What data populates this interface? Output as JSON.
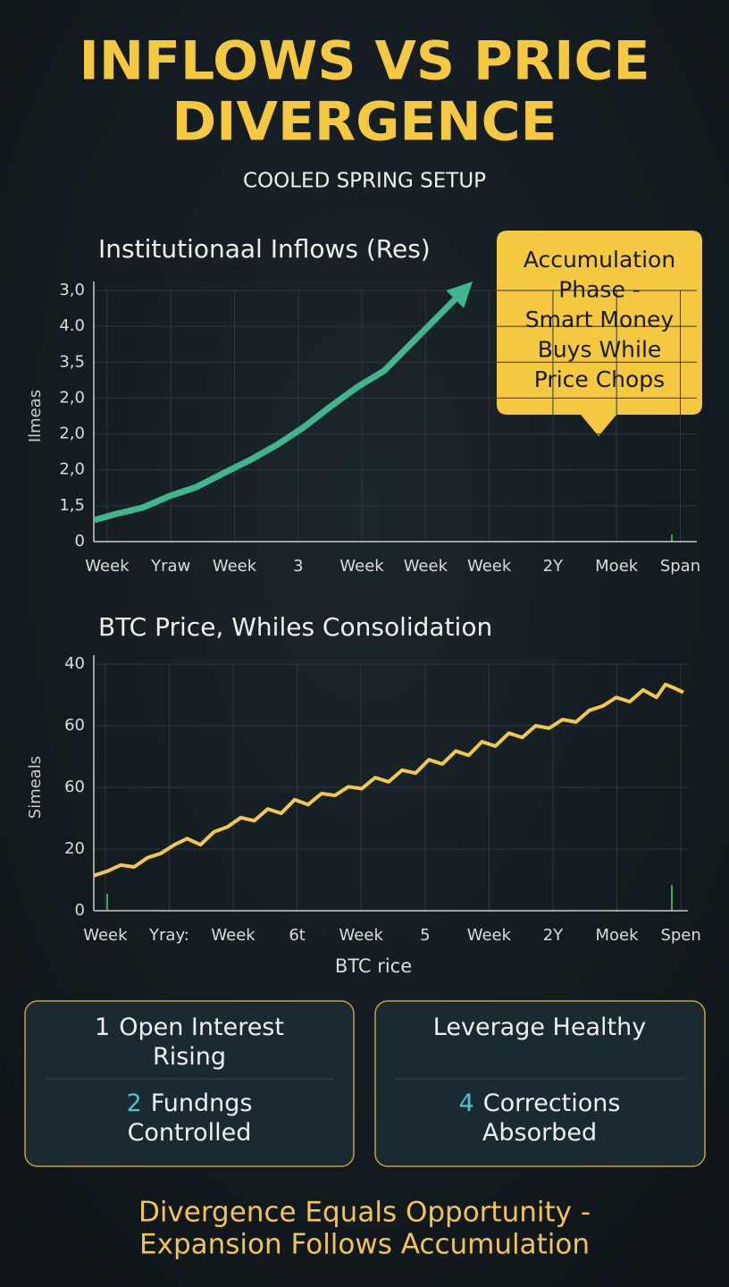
{
  "header": {
    "title_lines": [
      "INFLOWS VS PRICE",
      "DIVERGENCE"
    ],
    "subtitle": "COOLED SPRING SETUP"
  },
  "chart_data": [
    {
      "type": "line",
      "title": "Institutionaal Inflows (Res)",
      "y_label": "Ilmeas",
      "color": "#3fb68e",
      "arrow": true,
      "grid": true,
      "xlim": [
        -0.21,
        9.26
      ],
      "ylim": [
        0,
        7
      ],
      "xticks": [
        {
          "value": 0,
          "label": "Week"
        },
        {
          "value": 1,
          "label": "Yraw"
        },
        {
          "value": 2,
          "label": "Week"
        },
        3,
        {
          "value": 4,
          "label": "Week"
        },
        {
          "value": 5,
          "label": "Week"
        },
        {
          "value": 6,
          "label": "Week"
        },
        {
          "value": 7,
          "label": "2Y"
        },
        {
          "value": 8,
          "label": "Moek"
        },
        {
          "value": 9,
          "label": "Span"
        }
      ],
      "yticks": [
        0,
        {
          "value": 1,
          "label": "1,5"
        },
        {
          "value": 2,
          "label": "2,0"
        },
        {
          "value": 3,
          "label": "2,0"
        },
        {
          "value": 4,
          "label": "2,0"
        },
        {
          "value": 5,
          "label": "3,5"
        },
        {
          "value": 6,
          "label": "4.0"
        },
        {
          "value": 7,
          "label": "3,0"
        }
      ],
      "x": [
        -0.2,
        0.14,
        0.56,
        0.98,
        1.4,
        1.82,
        2.24,
        2.66,
        3.09,
        3.51,
        3.93,
        4.35,
        5.6
      ],
      "values": [
        0.6,
        0.77,
        0.95,
        1.27,
        1.52,
        1.9,
        2.27,
        2.69,
        3.19,
        3.77,
        4.31,
        4.76,
        7.0
      ]
    },
    {
      "type": "line",
      "title": "BTC Price, Whiles Consolidation",
      "y_label": "Simeals",
      "x_label": "BTC rice",
      "color": "#f2c94c",
      "arrow": false,
      "grid": true,
      "xlim": [
        -0.18,
        9.11
      ],
      "ylim": [
        0,
        4
      ],
      "xticks": [
        {
          "value": 0,
          "label": "Week"
        },
        {
          "value": 1,
          "label": "Yray:"
        },
        {
          "value": 2,
          "label": "Week"
        },
        {
          "value": 3,
          "label": "6t"
        },
        {
          "value": 4,
          "label": "Week"
        },
        5,
        {
          "value": 6,
          "label": "Week"
        },
        {
          "value": 7,
          "label": "2Y"
        },
        {
          "value": 8,
          "label": "Moek"
        },
        {
          "value": 9,
          "label": "Spen"
        }
      ],
      "yticks": [
        0,
        {
          "value": 1,
          "label": "20"
        },
        {
          "value": 2,
          "label": "60"
        },
        {
          "value": 3,
          "label": "60"
        },
        {
          "value": 4,
          "label": "40"
        }
      ],
      "x": [
        -0.18,
        0.03,
        0.24,
        0.45,
        0.66,
        0.87,
        1.08,
        1.28,
        1.49,
        1.7,
        1.91,
        2.12,
        2.33,
        2.54,
        2.75,
        2.96,
        3.17,
        3.38,
        3.59,
        3.8,
        4.01,
        4.22,
        4.43,
        4.64,
        4.85,
        5.06,
        5.27,
        5.48,
        5.68,
        5.89,
        6.1,
        6.31,
        6.52,
        6.73,
        6.94,
        7.15,
        7.36,
        7.57,
        7.78,
        7.99,
        8.2,
        8.41,
        8.62,
        8.76,
        8.9,
        9.04
      ],
      "values": [
        0.57,
        0.64,
        0.74,
        0.71,
        0.86,
        0.93,
        1.07,
        1.17,
        1.07,
        1.28,
        1.36,
        1.51,
        1.46,
        1.65,
        1.58,
        1.8,
        1.72,
        1.9,
        1.87,
        2.01,
        1.98,
        2.16,
        2.09,
        2.28,
        2.23,
        2.45,
        2.38,
        2.59,
        2.52,
        2.74,
        2.67,
        2.88,
        2.81,
        3.0,
        2.96,
        3.1,
        3.06,
        3.25,
        3.32,
        3.46,
        3.39,
        3.58,
        3.46,
        3.67,
        3.61,
        3.54
      ]
    }
  ],
  "callout": {
    "lines": [
      "Accumulation",
      "Phase -",
      "Smart Money",
      "Buys While",
      "Price Chops"
    ]
  },
  "cards": [
    {
      "items": [
        {
          "num": "1",
          "lines": [
            "Open Interest",
            "Rising"
          ]
        },
        {
          "num": "2",
          "lines": [
            "Fundngs",
            "Controlled"
          ]
        }
      ]
    },
    {
      "items": [
        {
          "lines": [
            "Leverage Healthy"
          ]
        },
        {
          "num": "4",
          "lines": [
            "Corrections",
            "Absorbed"
          ]
        }
      ]
    }
  ],
  "footer": {
    "lines": [
      "Divergence Equals Opportunity -",
      "Expansion Follows Accumulation"
    ]
  }
}
